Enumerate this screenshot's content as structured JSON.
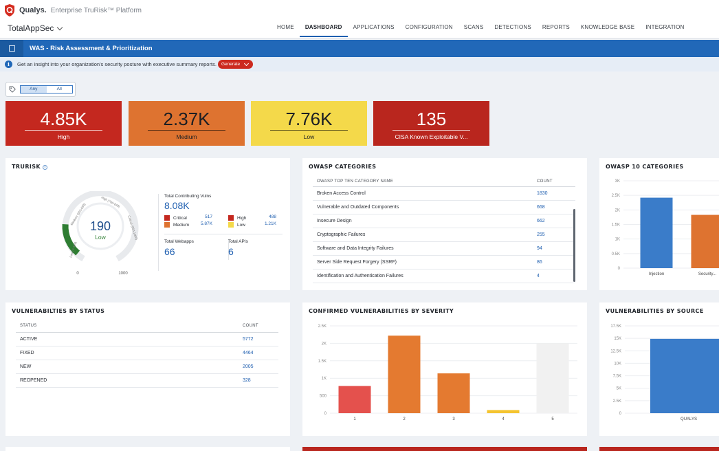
{
  "header": {
    "brand": "Qualys.",
    "platform": "Enterprise TruRisk™ Platform",
    "app_selector": "TotalAppSec",
    "nav": [
      {
        "label": "HOME",
        "active": false
      },
      {
        "label": "DASHBOARD",
        "active": true
      },
      {
        "label": "APPLICATIONS",
        "active": false
      },
      {
        "label": "CONFIGURATION",
        "active": false
      },
      {
        "label": "SCANS",
        "active": false
      },
      {
        "label": "DETECTIONS",
        "active": false
      },
      {
        "label": "REPORTS",
        "active": false
      },
      {
        "label": "KNOWLEDGE BASE",
        "active": false
      },
      {
        "label": "INTEGRATION",
        "active": false
      }
    ]
  },
  "dashboard": {
    "title": "WAS - Risk Assessment & Prioritization",
    "info_text": "Get an insight into your organization's security posture with executive summary reports.",
    "generate_label": "Generate"
  },
  "tag_filter": {
    "options": [
      "Any",
      "All"
    ],
    "selected": "Any"
  },
  "stats": [
    {
      "value": "4.85K",
      "label": "High",
      "color": "#c4281f"
    },
    {
      "value": "2.37K",
      "label": "Medium",
      "color": "#de7330"
    },
    {
      "value": "7.76K",
      "label": "Low",
      "color": "#f4d94a"
    },
    {
      "value": "135",
      "label": "CISA Known Exploitable V...",
      "color": "#b9261e"
    }
  ],
  "trurisk": {
    "title": "TRURISK",
    "score": "190",
    "level": "Low",
    "gauge_min": "0",
    "gauge_max": "1000",
    "gauge_bands": [
      "Low (0-499)",
      "Medium (500-699)",
      "High (700-849)",
      "Critical (850-1000)"
    ],
    "score_fraction": 0.19,
    "contributing_label": "Total Contributing Vulns",
    "contributing_value": "8.08K",
    "breakdown": [
      {
        "label": "Critical",
        "value": "517",
        "color": "#c4281f"
      },
      {
        "label": "High",
        "value": "488",
        "color": "#c4281f"
      },
      {
        "label": "Medium",
        "value": "5.87K",
        "color": "#de7330"
      },
      {
        "label": "Low",
        "value": "1.21K",
        "color": "#f4d94a"
      }
    ],
    "webapps_label": "Total Webapps",
    "webapps_value": "66",
    "apis_label": "Total APIs",
    "apis_value": "6"
  },
  "owasp_table": {
    "title": "OWASP CATEGORIES",
    "col_name": "OWASP TOP TEN CATEGORY NAME",
    "col_count": "COUNT",
    "rows": [
      {
        "name": "Broken Access Control",
        "count": "1830"
      },
      {
        "name": "Vulnerable and Outdated Components",
        "count": "668"
      },
      {
        "name": "Insecure Design",
        "count": "662"
      },
      {
        "name": "Cryptographic Failures",
        "count": "255"
      },
      {
        "name": "Software and Data Integrity Failures",
        "count": "94"
      },
      {
        "name": "Server Side Request Forgery (SSRF)",
        "count": "86"
      },
      {
        "name": "Identification and Authentication Failures",
        "count": "4"
      }
    ]
  },
  "status_table": {
    "title": "VULNERABILTIES BY STATUS",
    "col_status": "STATUS",
    "col_count": "COUNT",
    "rows": [
      {
        "status": "ACTIVE",
        "count": "5772"
      },
      {
        "status": "FIXED",
        "count": "4464"
      },
      {
        "status": "NEW",
        "count": "2005"
      },
      {
        "status": "REOPENED",
        "count": "328"
      }
    ]
  },
  "chart_data": [
    {
      "type": "bar",
      "title": "OWASP 10 CATEGORIES",
      "categories": [
        "Injection",
        "Security..."
      ],
      "values": [
        2420,
        1830
      ],
      "colors": [
        "#3a7cc9",
        "#de7330"
      ],
      "ylim": [
        0,
        3000
      ],
      "yticks": [
        "0",
        "0.5K",
        "1K",
        "1.5K",
        "2K",
        "2.5K",
        "3K"
      ],
      "grid": true
    },
    {
      "type": "bar",
      "title": "CONFIRMED VULNERABILITIES BY SEVERITY",
      "categories": [
        "1",
        "2",
        "3",
        "4",
        "5"
      ],
      "values": [
        780,
        2220,
        1140,
        90,
        2000
      ],
      "colors": [
        "#e4514d",
        "#e47a30",
        "#e47a30",
        "#f4c430",
        "#f1f1f1"
      ],
      "ylim": [
        0,
        2500
      ],
      "yticks": [
        "0",
        "500",
        "1K",
        "1.5K",
        "2K",
        "2.5K"
      ],
      "grid": true
    },
    {
      "type": "bar",
      "title": "VULNERABILITIES BY SOURCE",
      "categories": [
        "QUALYS"
      ],
      "values": [
        14900
      ],
      "colors": [
        "#3a7cc9"
      ],
      "ylim": [
        0,
        17500
      ],
      "yticks": [
        "0",
        "2.5K",
        "5K",
        "7.5K",
        "10K",
        "12.5K",
        "15K",
        "17.5K"
      ],
      "grid": true
    }
  ]
}
